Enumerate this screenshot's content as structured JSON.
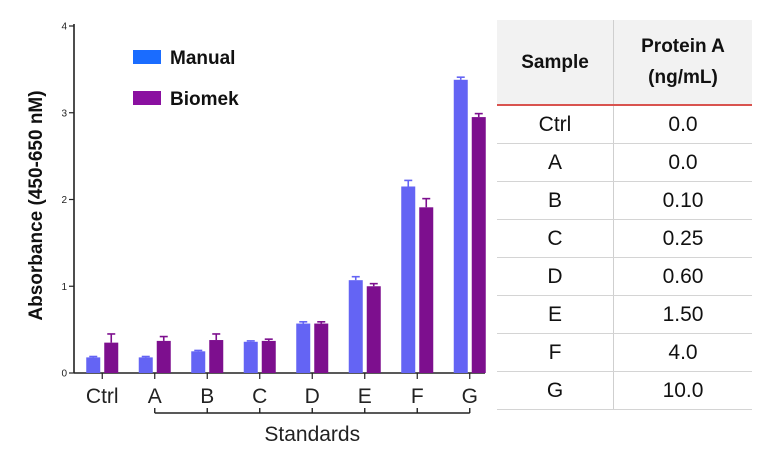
{
  "chart_data": {
    "type": "bar",
    "ylabel": "Absorbance (450-650 nM)",
    "xlabel": "",
    "ylim": [
      0,
      4
    ],
    "yticks": [
      "0",
      "1",
      "2",
      "3",
      "4"
    ],
    "categories": [
      "Ctrl",
      "A",
      "B",
      "C",
      "D",
      "E",
      "F",
      "G"
    ],
    "group_label": "Standards",
    "group_categories": [
      "A",
      "B",
      "C",
      "D",
      "E",
      "F",
      "G"
    ],
    "legend_position": "top-left",
    "series": [
      {
        "name": "Manual",
        "color": "#6464f4",
        "values": [
          0.18,
          0.18,
          0.25,
          0.36,
          0.57,
          1.07,
          2.15,
          3.38
        ],
        "errors": [
          0.01,
          0.01,
          0.01,
          0.01,
          0.02,
          0.04,
          0.07,
          0.03
        ]
      },
      {
        "name": "Biomek",
        "color": "#7d0f8e",
        "values": [
          0.35,
          0.37,
          0.38,
          0.37,
          0.57,
          1.0,
          1.91,
          2.95
        ],
        "errors": [
          0.1,
          0.05,
          0.07,
          0.02,
          0.02,
          0.03,
          0.1,
          0.04
        ]
      }
    ],
    "legend_colors": [
      "#1a6cff",
      "#8a10a0"
    ]
  },
  "table": {
    "headers": {
      "sample": "Sample",
      "protein_line1": "Protein A",
      "protein_line2": "(ng/mL)"
    },
    "rows": [
      {
        "sample": "Ctrl",
        "value": "0.0"
      },
      {
        "sample": "A",
        "value": "0.0"
      },
      {
        "sample": "B",
        "value": "0.10"
      },
      {
        "sample": "C",
        "value": "0.25"
      },
      {
        "sample": "D",
        "value": "0.60"
      },
      {
        "sample": "E",
        "value": "1.50"
      },
      {
        "sample": "F",
        "value": "4.0"
      },
      {
        "sample": "G",
        "value": "10.0"
      }
    ]
  }
}
